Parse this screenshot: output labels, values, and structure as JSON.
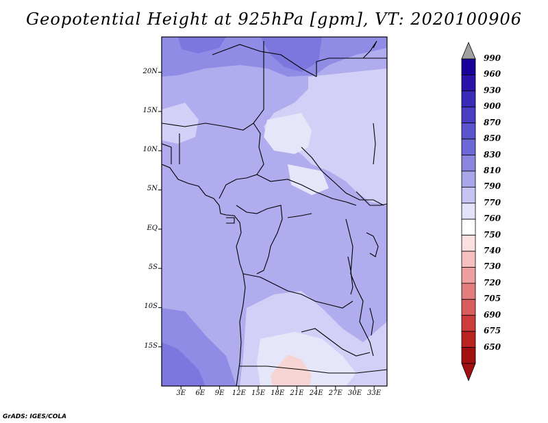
{
  "title": "Geopotential Height at 925hPa [gpm], VT: 2020100906",
  "credit": "GrADS: IGES/COLA",
  "map": {
    "lat_labels": [
      "20N",
      "15N",
      "10N",
      "5N",
      "EQ",
      "5S",
      "10S",
      "15S"
    ],
    "lat_values": [
      20,
      15,
      10,
      5,
      0,
      -5,
      -10,
      -15
    ],
    "lon_labels": [
      "3E",
      "6E",
      "9E",
      "12E",
      "15E",
      "18E",
      "21E",
      "24E",
      "27E",
      "30E",
      "33E"
    ],
    "lon_values": [
      3,
      6,
      9,
      12,
      15,
      18,
      21,
      24,
      27,
      30,
      33
    ],
    "lon_range": [
      0,
      35
    ],
    "lat_range": [
      -20,
      24.5
    ]
  },
  "legend": {
    "levels": [
      "990",
      "960",
      "930",
      "900",
      "870",
      "850",
      "830",
      "810",
      "790",
      "770",
      "760",
      "750",
      "740",
      "730",
      "720",
      "705",
      "690",
      "675",
      "650"
    ],
    "colors": [
      "#1a0099",
      "#2a14a8",
      "#3a2cb8",
      "#4a3fc4",
      "#5a55cc",
      "#6c68d6",
      "#8a86e0",
      "#aaa6ea",
      "#c6c4f2",
      "#e2e2f8",
      "#ffffff",
      "#fce0e0",
      "#f6c0c0",
      "#eea0a0",
      "#e47e7e",
      "#d95c5c",
      "#cc3c3c",
      "#bb2222",
      "#a01010"
    ],
    "top_arrow_color": "#a0a0a0",
    "bottom_arrow_color": "#a01010"
  },
  "colors": {
    "field_base": "#b0acee",
    "field_light": "#d2d0f6",
    "field_dark": "#908ce6",
    "field_darker": "#7c76de",
    "field_pale": "#e6e6fa",
    "field_warm": "#f6d4d4"
  }
}
